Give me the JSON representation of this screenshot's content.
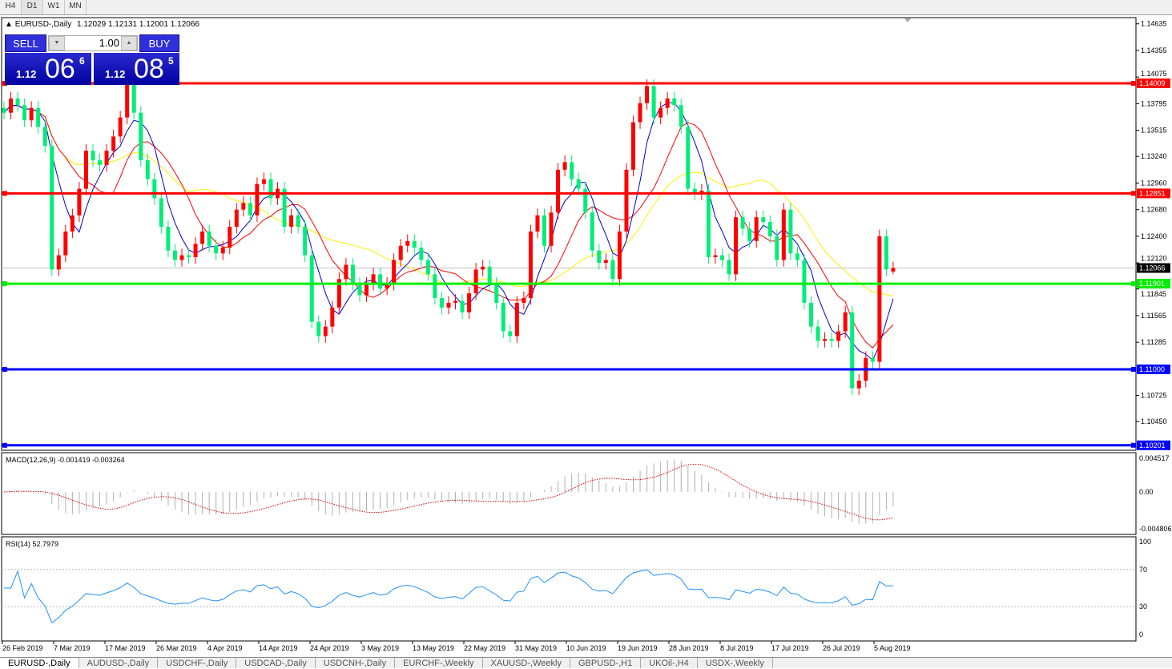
{
  "timeframes": [
    "H4",
    "D1",
    "W1",
    "MN"
  ],
  "active_timeframe": "D1",
  "chart_title": "EURUSD-,Daily",
  "ohlc_readout": "1.12029 1.12131 1.12001 1.12066",
  "trade_panel": {
    "sell_label": "SELL",
    "buy_label": "BUY",
    "lot": "1.00",
    "sell_big": "1.12",
    "sell_pips": "06",
    "sell_frac": "6",
    "buy_big": "1.12",
    "buy_pips": "08",
    "buy_frac": "5"
  },
  "price_axis": [
    "1.14635",
    "1.14355",
    "1.14075",
    "1.13795",
    "1.13515",
    "1.13240",
    "1.12960",
    "1.12680",
    "1.12400",
    "1.12120",
    "1.11845",
    "1.11565",
    "1.11285",
    "1.10725",
    "1.10450"
  ],
  "levels": [
    {
      "price": 1.14009,
      "label": "1.14009",
      "color": "#ff0000"
    },
    {
      "price": 1.12851,
      "label": "1.12851",
      "color": "#ff0000"
    },
    {
      "price": 1.11901,
      "label": "1.11901",
      "color": "#00ee00"
    },
    {
      "price": 1.11,
      "label": "1.11000",
      "color": "#0000ff"
    },
    {
      "price": 1.10201,
      "label": "1.10201",
      "color": "#0000ff"
    }
  ],
  "current_price": {
    "price": 1.12066,
    "label": "1.12066"
  },
  "colors": {
    "bull": "#ff0000",
    "bear": "#00ee77",
    "ma_fast": "#0000cc",
    "ma_mid": "#ff0000",
    "ma_slow": "#ffee00",
    "macd_hist": "#b0b0b0",
    "macd_signal": "#dd0000",
    "rsi": "#1e90ff"
  },
  "chart_data": {
    "type": "candlestick",
    "symbol": "EURUSD-",
    "timeframe": "Daily",
    "closes": [
      1.137,
      1.1385,
      1.1378,
      1.1362,
      1.1375,
      1.1355,
      1.1335,
      1.1205,
      1.122,
      1.1245,
      1.1262,
      1.129,
      1.133,
      1.132,
      1.1315,
      1.133,
      1.1345,
      1.1365,
      1.14,
      1.137,
      1.132,
      1.13,
      1.128,
      1.125,
      1.1225,
      1.1215,
      1.122,
      1.1218,
      1.1232,
      1.1245,
      1.123,
      1.1222,
      1.1228,
      1.125,
      1.1268,
      1.1275,
      1.1262,
      1.1295,
      1.13,
      1.128,
      1.129,
      1.125,
      1.1262,
      1.125,
      1.122,
      1.115,
      1.1135,
      1.1145,
      1.1165,
      1.1195,
      1.121,
      1.119,
      1.1178,
      1.119,
      1.12,
      1.1185,
      1.119,
      1.1215,
      1.123,
      1.1235,
      1.1228,
      1.1215,
      1.12,
      1.1175,
      1.1165,
      1.117,
      1.1172,
      1.116,
      1.118,
      1.1205,
      1.1208,
      1.119,
      1.117,
      1.114,
      1.1135,
      1.117,
      1.1175,
      1.1245,
      1.1262,
      1.123,
      1.1265,
      1.131,
      1.1318,
      1.13,
      1.129,
      1.1265,
      1.1225,
      1.1212,
      1.1215,
      1.1195,
      1.1245,
      1.131,
      1.136,
      1.138,
      1.1398,
      1.1365,
      1.1375,
      1.1385,
      1.1378,
      1.1355,
      1.129,
      1.1285,
      1.1288,
      1.1218,
      1.122,
      1.1215,
      1.12,
      1.126,
      1.1248,
      1.1235,
      1.126,
      1.1255,
      1.124,
      1.1215,
      1.1268,
      1.1222,
      1.1215,
      1.117,
      1.1145,
      1.113,
      1.1132,
      1.113,
      1.114,
      1.116,
      1.108,
      1.1088,
      1.1112,
      1.1108,
      1.124,
      1.1205,
      1.12066
    ],
    "last_bar": {
      "open": 1.12029,
      "high": 1.12131,
      "low": 1.12001,
      "close": 1.12066
    },
    "date_labels": [
      "26 Feb 2019",
      "7 Mar 2019",
      "17 Mar 2019",
      "26 Mar 2019",
      "4 Apr 2019",
      "14 Apr 2019",
      "24 Apr 2019",
      "3 May 2019",
      "13 May 2019",
      "22 May 2019",
      "31 May 2019",
      "10 Jun 2019",
      "19 Jun 2019",
      "28 Jun 2019",
      "8 Jul 2019",
      "17 Jul 2019",
      "26 Jul 2019",
      "5 Aug 2019"
    ],
    "yrange": [
      1.10175,
      1.14635
    ]
  },
  "macd": {
    "label": "MACD(12,26,9) -0.001419 -0.003264",
    "axis": [
      "0.004517",
      "0.00",
      "-0.004806"
    ]
  },
  "rsi": {
    "label": "RSI(14) 52.7979",
    "axis": [
      "100",
      "70",
      "30",
      "0"
    ]
  },
  "tabs": [
    "EURUSD-,Daily",
    "AUDUSD-,Daily",
    "USDCHF-,Daily",
    "USDCAD-,Daily",
    "USDCNH-,Daily",
    "EURCHF-,Weekly",
    "XAUUSD-,Weekly",
    "GBPUSD-,H1",
    "UKOil-,H4",
    "USDX-,Weekly"
  ],
  "active_tab": "EURUSD-,Daily"
}
